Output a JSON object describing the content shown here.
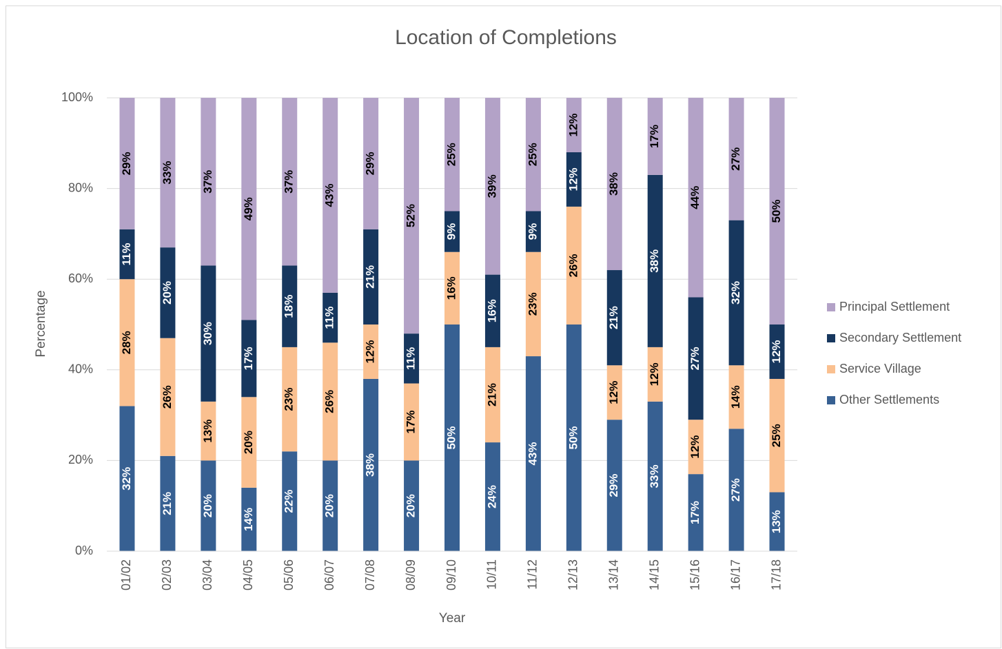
{
  "chart_data": {
    "type": "stacked_bar",
    "title": "Location of Completions",
    "x_label": "Year",
    "y_label": "Percentage",
    "categories": [
      "01/02",
      "02/03",
      "03/04",
      "04/05",
      "05/06",
      "06/07",
      "07/08",
      "08/09",
      "09/10",
      "10/11",
      "11/12",
      "12/13",
      "13/14",
      "14/15",
      "15/16",
      "16/17",
      "17/18"
    ],
    "series": [
      {
        "name": "Other Settlements",
        "color": "#376092",
        "values": [
          32,
          21,
          20,
          14,
          22,
          20,
          38,
          20,
          50,
          24,
          43,
          50,
          29,
          33,
          17,
          27,
          13
        ],
        "value_labels": [
          "32%",
          "21%",
          "20%",
          "14%",
          "22%",
          "20%",
          "38%",
          "20%",
          "50%",
          "24%",
          "43%",
          "50%",
          "29%",
          "33%",
          "17%",
          "27%",
          "13%"
        ]
      },
      {
        "name": "Service Village",
        "color": "#fac090",
        "values": [
          28,
          26,
          13,
          20,
          23,
          26,
          12,
          17,
          16,
          21,
          23,
          26,
          12,
          12,
          12,
          14,
          25
        ],
        "value_labels": [
          "28%",
          "26%",
          "13%",
          "20%",
          "23%",
          "26%",
          "12%",
          "17%",
          "16%",
          "21%",
          "23%",
          "26%",
          "12%",
          "12%",
          "12%",
          "14%",
          "25%"
        ]
      },
      {
        "name": "Secondary Settlement",
        "color": "#17375e",
        "values": [
          11,
          20,
          30,
          17,
          18,
          11,
          21,
          11,
          9,
          16,
          9,
          12,
          21,
          38,
          27,
          32,
          12
        ],
        "value_labels": [
          "11%",
          "20%",
          "30%",
          "17%",
          "18%",
          "11%",
          "21%",
          "11%",
          "9%",
          "16%",
          "9%",
          "12%",
          "21%",
          "38%",
          "27%",
          "32%",
          "12%"
        ]
      },
      {
        "name": "Principal Settlement",
        "color": "#b3a2c7",
        "values": [
          29,
          33,
          37,
          49,
          37,
          43,
          29,
          52,
          25,
          39,
          25,
          12,
          38,
          17,
          44,
          27,
          50
        ],
        "value_labels": [
          "29%",
          "33%",
          "37%",
          "49%",
          "37%",
          "43%",
          "29%",
          "52%",
          "25%",
          "39%",
          "25%",
          "12%",
          "38%",
          "17%",
          "44%",
          "27%",
          "50%"
        ]
      }
    ],
    "ylim": [
      0,
      100
    ],
    "yticks": [
      {
        "value": 0,
        "label": "0%"
      },
      {
        "value": 20,
        "label": "20%"
      },
      {
        "value": 40,
        "label": "40%"
      },
      {
        "value": 60,
        "label": "60%"
      },
      {
        "value": 80,
        "label": "80%"
      },
      {
        "value": 100,
        "label": "100%"
      }
    ],
    "grid": true,
    "legend": "right"
  }
}
